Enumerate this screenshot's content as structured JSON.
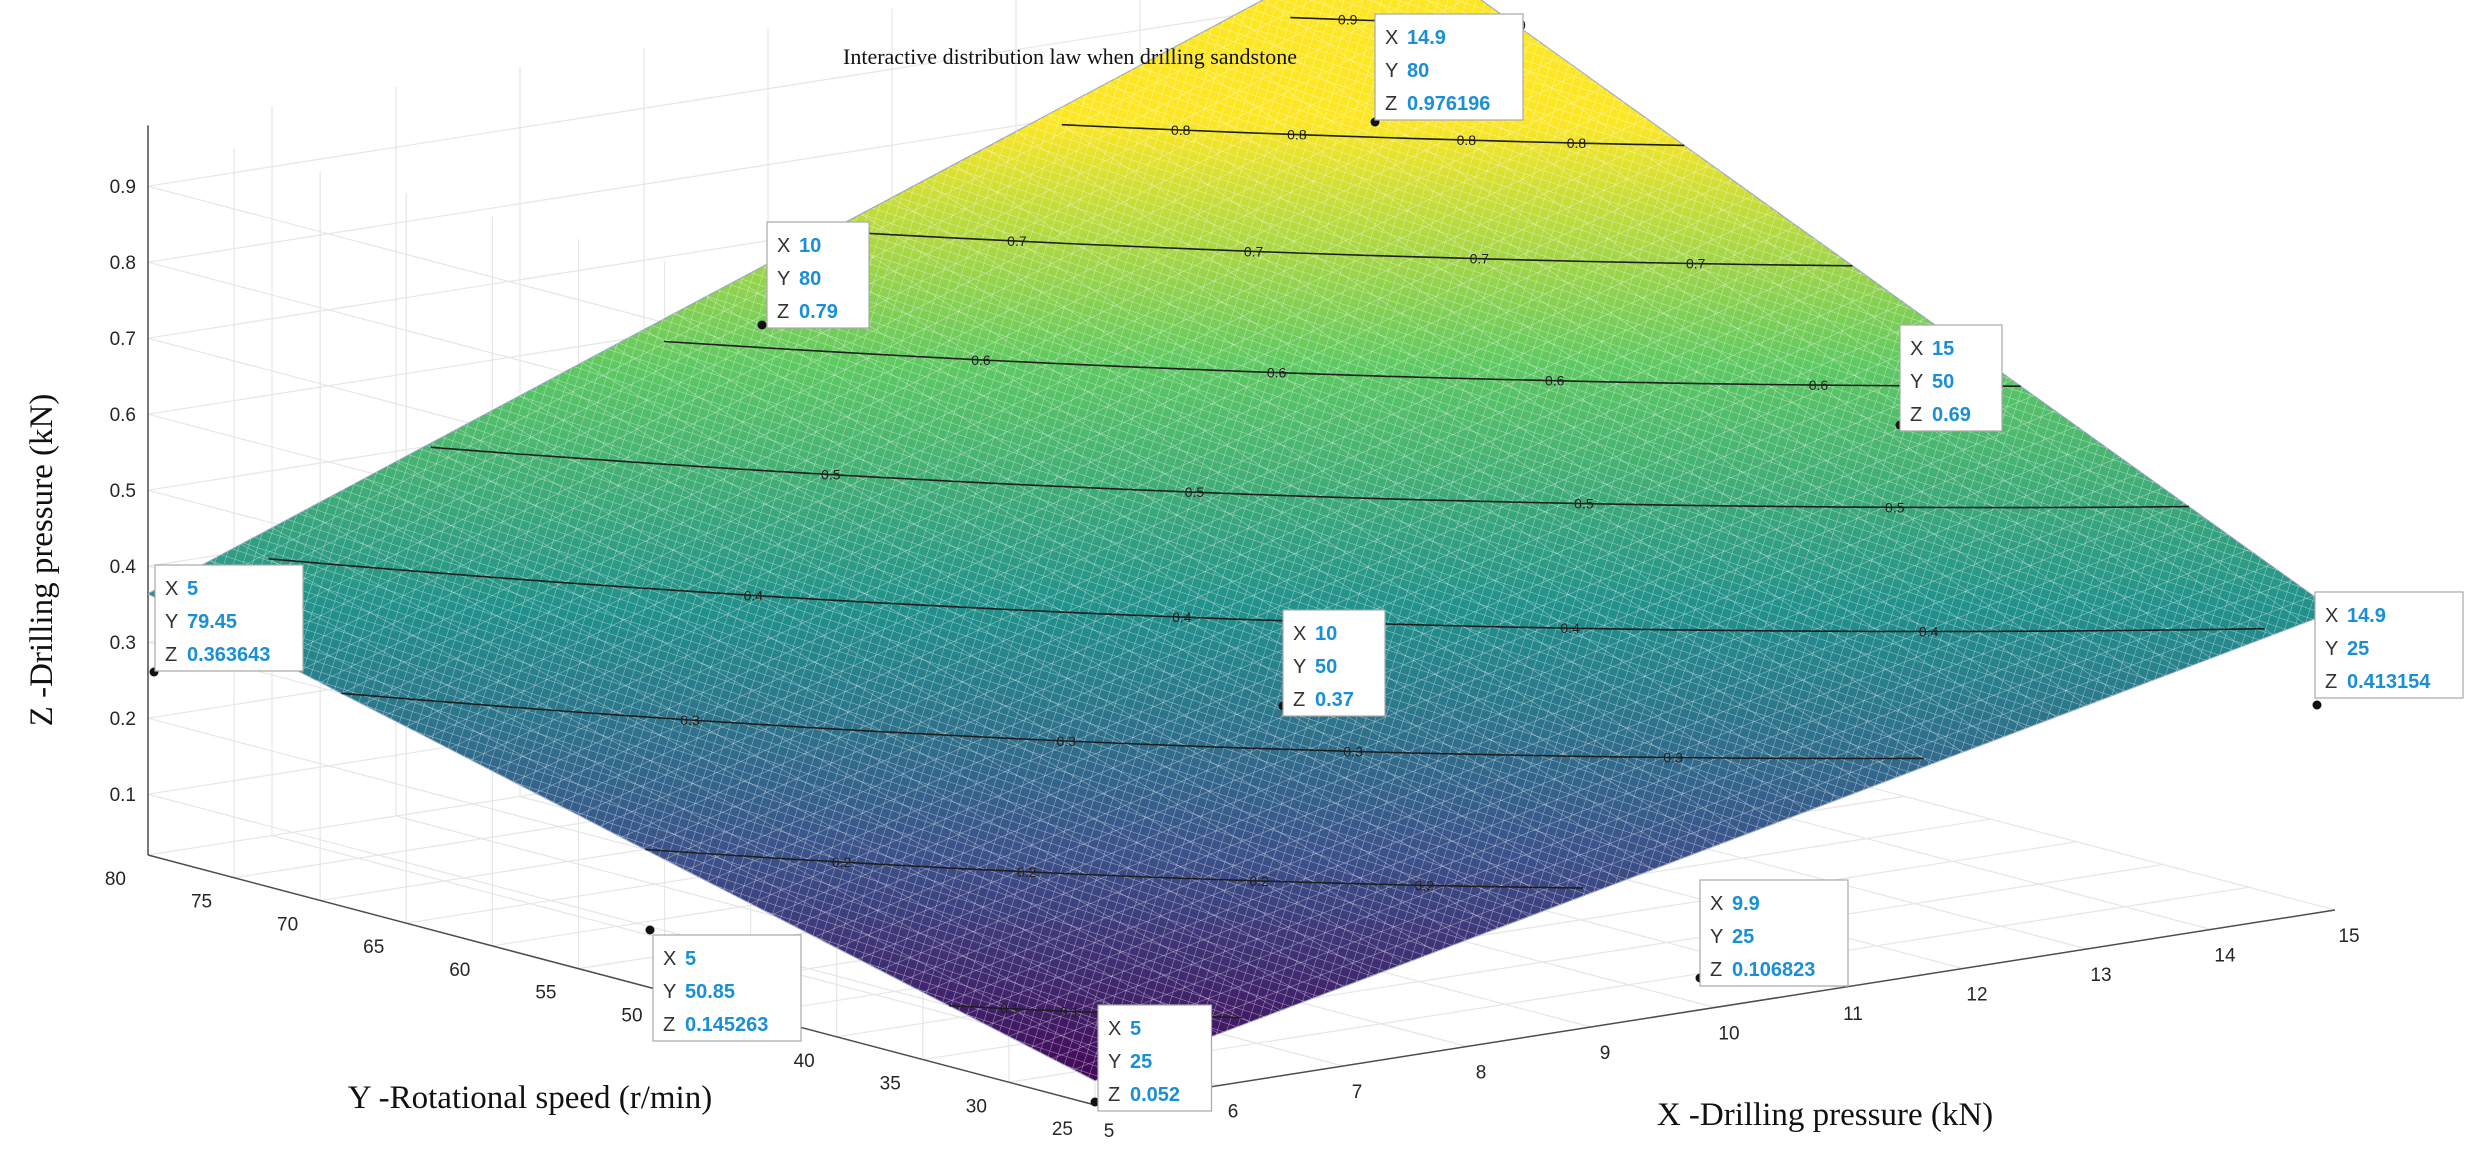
{
  "chart_data": {
    "type": "surface",
    "title": "Interactive distribution law when drilling sandstone",
    "xlabel": "X -Drilling pressure (kN)",
    "ylabel": "Y -Rotational speed (r/min)",
    "zlabel": "Z -Drilling pressure (kN)",
    "xlim": [
      5,
      15
    ],
    "ylim": [
      25,
      80
    ],
    "zlim": [
      0.05,
      0.98
    ],
    "x_ticks": [
      "5",
      "6",
      "7",
      "8",
      "9",
      "10",
      "11",
      "12",
      "13",
      "14",
      "15"
    ],
    "y_ticks": [
      "25",
      "30",
      "35",
      "40",
      "50",
      "55",
      "60",
      "65",
      "70",
      "75",
      "80"
    ],
    "z_ticks": [
      "0.1",
      "0.2",
      "0.3",
      "0.4",
      "0.5",
      "0.6",
      "0.7",
      "0.8",
      "0.9"
    ],
    "colormap": [
      "#440154",
      "#3b528b",
      "#21918c",
      "#5ec962",
      "#fde725"
    ],
    "grid": true,
    "contour_levels": [
      0.1,
      0.2,
      0.3,
      0.4,
      0.5,
      0.6,
      0.7,
      0.8,
      0.9
    ],
    "data_tips": [
      {
        "x": "14.9",
        "y": "80",
        "z": "0.976196"
      },
      {
        "x": "10",
        "y": "80",
        "z": "0.79"
      },
      {
        "x": "15",
        "y": "50",
        "z": "0.69"
      },
      {
        "x": "5",
        "y": "79.45",
        "z": "0.363643"
      },
      {
        "x": "10",
        "y": "50",
        "z": "0.37"
      },
      {
        "x": "14.9",
        "y": "25",
        "z": "0.413154"
      },
      {
        "x": "9.9",
        "y": "25",
        "z": "0.106823"
      },
      {
        "x": "5",
        "y": "50.85",
        "z": "0.145263"
      },
      {
        "x": "5",
        "y": "25",
        "z": "0.052"
      }
    ]
  }
}
